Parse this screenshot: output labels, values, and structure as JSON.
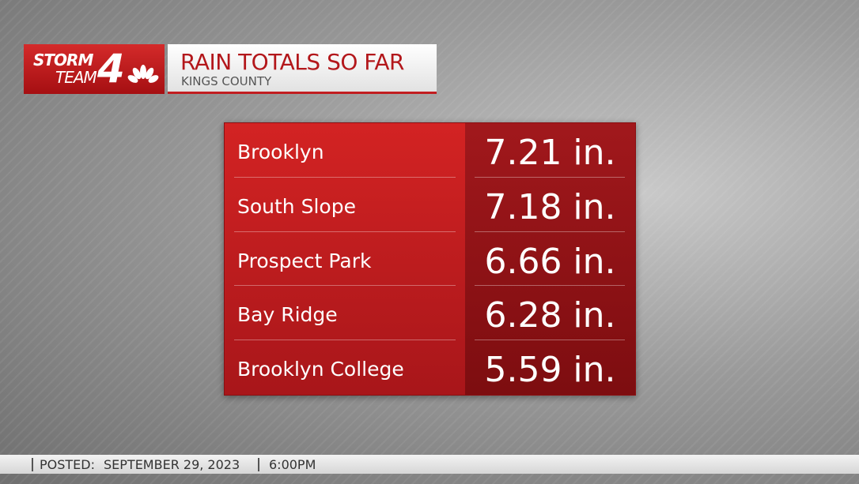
{
  "logo": {
    "line1": "STORM",
    "line2": "TEAM",
    "number": "4"
  },
  "header": {
    "title": "RAIN TOTALS SO FAR",
    "subtitle": "KINGS COUNTY"
  },
  "table": {
    "rows": [
      [
        "Brooklyn",
        "7.21 in."
      ],
      [
        "South Slope",
        "7.18 in."
      ],
      [
        "Prospect Park",
        "6.66 in."
      ],
      [
        "Bay Ridge",
        "6.28 in."
      ],
      [
        "Brooklyn College",
        "5.59 in."
      ]
    ]
  },
  "footer": {
    "label": "POSTED:",
    "date": "SEPTEMBER 29, 2023",
    "time": "6:00PM"
  }
}
